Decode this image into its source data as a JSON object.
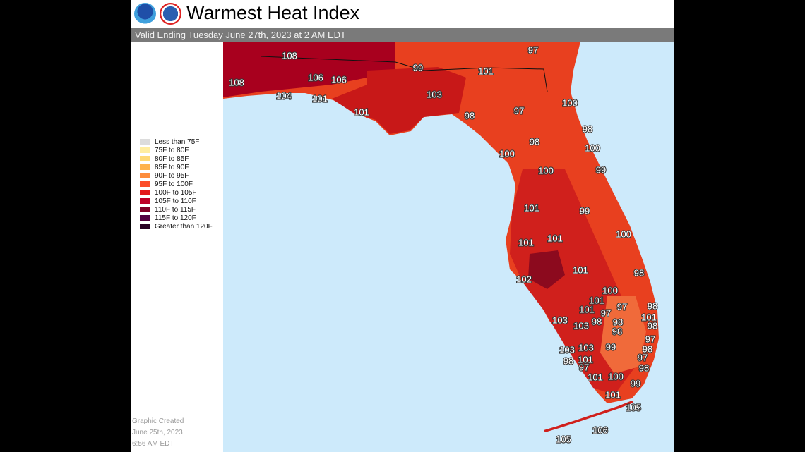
{
  "header": {
    "title": "Warmest Heat Index",
    "subtitle": "Valid Ending Tuesday June 27th, 2023 at 2 AM EDT",
    "logos": [
      "NOAA",
      "National Weather Service"
    ]
  },
  "legend": [
    {
      "label": "Less than 75F",
      "color": "#dcdcdc"
    },
    {
      "label": "75F to 80F",
      "color": "#ffeda0"
    },
    {
      "label": "80F to 85F",
      "color": "#fed976"
    },
    {
      "label": "85F to 90F",
      "color": "#feb24c"
    },
    {
      "label": "90F to 95F",
      "color": "#fd8d3c"
    },
    {
      "label": "95F to 100F",
      "color": "#fc4e2a"
    },
    {
      "label": "100F to 105F",
      "color": "#e31a1c"
    },
    {
      "label": "105F to 110F",
      "color": "#bd0026"
    },
    {
      "label": "110F to 115F",
      "color": "#800026"
    },
    {
      "label": "115F to 120F",
      "color": "#540040"
    },
    {
      "label": "Greater than 120F",
      "color": "#2a0024"
    }
  ],
  "created": [
    "Graphic Created",
    "June 25th, 2023",
    "6:56 AM EDT"
  ],
  "map": {
    "water_color": "#cdeafb",
    "region": "Florida",
    "values": [
      108,
      97,
      99,
      101,
      108,
      106,
      106,
      104,
      101,
      103,
      101,
      100,
      97,
      98,
      98,
      98,
      100,
      100,
      100,
      99,
      101,
      99,
      100,
      101,
      101,
      101,
      98,
      102,
      100,
      101,
      97,
      98,
      101,
      97,
      101,
      103,
      98,
      98,
      103,
      98,
      98,
      97,
      99,
      98,
      103,
      103,
      101,
      98,
      97,
      97,
      98,
      101,
      100,
      99,
      101,
      105,
      106,
      105
    ]
  }
}
